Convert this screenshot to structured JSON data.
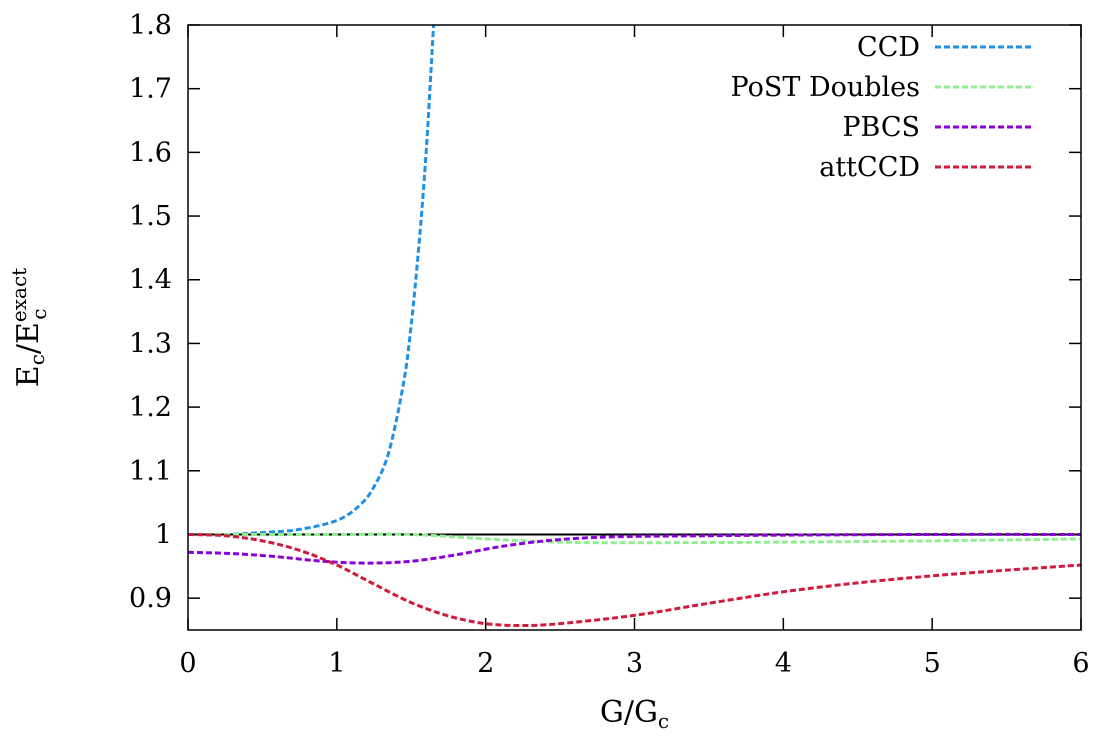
{
  "chart_data": {
    "type": "line",
    "xlabel": "G/G",
    "xlabel_sub": "c",
    "ylabel": "E",
    "ylabel_sub": "c",
    "ylabel_den": "/E",
    "ylabel_den_sup": "exact",
    "ylabel_den_sub": "c",
    "xlim": [
      0,
      6
    ],
    "ylim": [
      0.85,
      1.8
    ],
    "x_ticks": [
      0,
      1,
      2,
      3,
      4,
      5,
      6
    ],
    "x_tick_labels": [
      "0",
      "1",
      "2",
      "3",
      "4",
      "5",
      "6"
    ],
    "y_ticks": [
      0.9,
      1.0,
      1.1,
      1.2,
      1.3,
      1.4,
      1.5,
      1.6,
      1.7,
      1.8
    ],
    "y_tick_labels": [
      "0.9",
      "1",
      "1.1",
      "1.2",
      "1.3",
      "1.4",
      "1.5",
      "1.6",
      "1.7",
      "1.8"
    ],
    "grid": false,
    "legend_position": "top-right",
    "reference_line": {
      "y": 1.0,
      "color": "#000000"
    },
    "series": [
      {
        "name": "CCD",
        "color": "#1e90e8",
        "x": [
          0,
          0.25,
          0.5,
          0.75,
          1.0,
          1.15,
          1.25,
          1.35,
          1.45,
          1.5,
          1.55,
          1.6,
          1.65
        ],
        "y": [
          1.0,
          1.0,
          1.003,
          1.008,
          1.022,
          1.045,
          1.075,
          1.13,
          1.24,
          1.33,
          1.45,
          1.6,
          1.8
        ]
      },
      {
        "name": "PoST Doubles",
        "color": "#90ee90",
        "x": [
          0,
          0.5,
          1.0,
          1.5,
          2.0,
          2.5,
          3.0,
          4.0,
          5.0,
          6.0
        ],
        "y": [
          1.0,
          1.0,
          1.0,
          1.0,
          0.993,
          0.988,
          0.987,
          0.988,
          0.99,
          0.993
        ]
      },
      {
        "name": "PBCS",
        "color": "#8b00d8",
        "x": [
          0,
          0.3,
          0.6,
          0.9,
          1.2,
          1.5,
          1.8,
          2.1,
          2.4,
          2.7,
          3.0,
          3.5,
          4.0,
          5.0,
          6.0
        ],
        "y": [
          0.972,
          0.97,
          0.965,
          0.958,
          0.955,
          0.958,
          0.968,
          0.981,
          0.99,
          0.995,
          0.997,
          0.998,
          0.999,
          1.0,
          1.0
        ]
      },
      {
        "name": "attCCD",
        "color": "#d11a3c",
        "x": [
          0,
          0.25,
          0.5,
          0.75,
          1.0,
          1.25,
          1.5,
          1.75,
          2.0,
          2.25,
          2.5,
          3.0,
          3.5,
          4.0,
          4.5,
          5.0,
          5.5,
          6.0
        ],
        "y": [
          1.0,
          0.998,
          0.99,
          0.975,
          0.952,
          0.922,
          0.893,
          0.872,
          0.86,
          0.857,
          0.86,
          0.873,
          0.892,
          0.91,
          0.924,
          0.935,
          0.944,
          0.952
        ]
      }
    ]
  }
}
